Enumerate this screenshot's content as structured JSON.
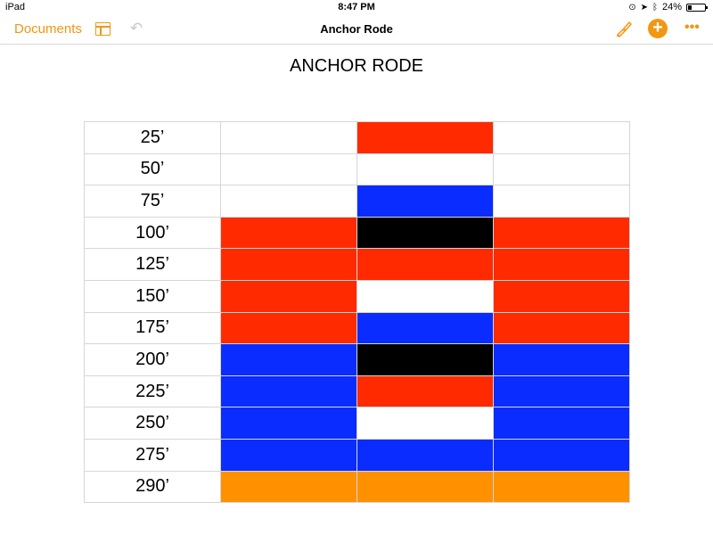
{
  "status_bar": {
    "device": "iPad",
    "time": "8:47 PM",
    "battery_text": "24%",
    "battery_level": 0.24
  },
  "toolbar": {
    "documents_label": "Documents",
    "title": "Anchor Rode",
    "sidebar_icon": "sidebar-icon",
    "undo_icon": "undo-icon",
    "format_icon": "paintbrush-icon",
    "add_icon": "plus-icon",
    "more_icon": "more-icon",
    "add_glyph": "+",
    "more_glyph": "•••",
    "undo_glyph": "↶",
    "accent_color": "#f19712"
  },
  "document": {
    "heading": "ANCHOR RODE",
    "colors": {
      "red": "#ff2a00",
      "white": "#ffffff",
      "blue": "#0a2cff",
      "black": "#000000",
      "orange": "#ff9100"
    },
    "rows": [
      {
        "label": "25’",
        "cells": [
          "white",
          "red",
          "white"
        ]
      },
      {
        "label": "50’",
        "cells": [
          "white",
          "white",
          "white"
        ]
      },
      {
        "label": "75’",
        "cells": [
          "white",
          "blue",
          "white"
        ]
      },
      {
        "label": "100’",
        "cells": [
          "red",
          "black",
          "red"
        ]
      },
      {
        "label": "125’",
        "cells": [
          "red",
          "red",
          "red"
        ]
      },
      {
        "label": "150’",
        "cells": [
          "red",
          "white",
          "red"
        ]
      },
      {
        "label": "175’",
        "cells": [
          "red",
          "blue",
          "red"
        ]
      },
      {
        "label": "200’",
        "cells": [
          "blue",
          "black",
          "blue"
        ]
      },
      {
        "label": "225’",
        "cells": [
          "blue",
          "red",
          "blue"
        ]
      },
      {
        "label": "250’",
        "cells": [
          "blue",
          "white",
          "blue"
        ]
      },
      {
        "label": "275’",
        "cells": [
          "blue",
          "blue",
          "blue"
        ]
      },
      {
        "label": "290’",
        "cells": [
          "orange",
          "orange",
          "orange"
        ]
      }
    ]
  }
}
